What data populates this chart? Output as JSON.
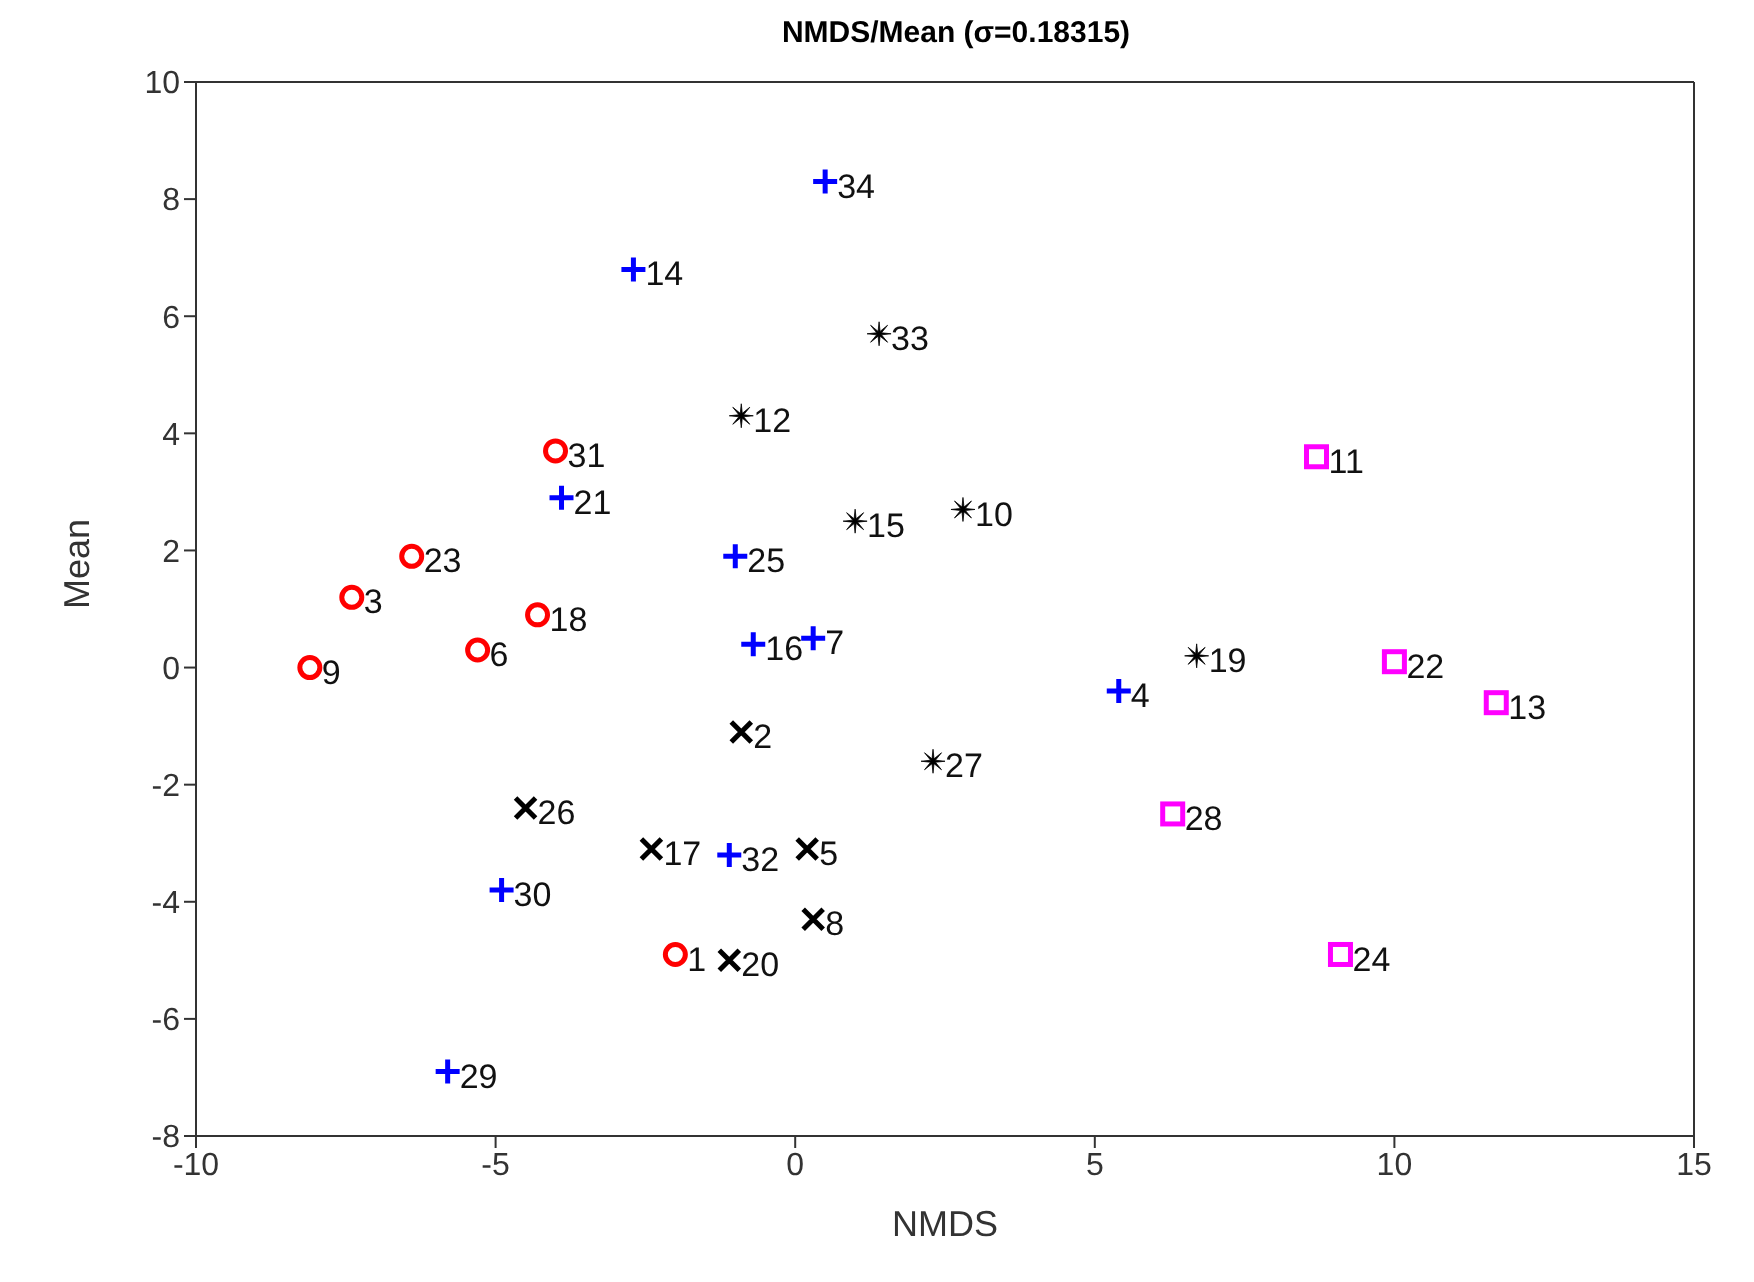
{
  "chart_data": {
    "type": "scatter",
    "title": "NMDS/Mean (σ=0.18315)",
    "xlabel": "NMDS",
    "ylabel": "Mean",
    "xlim": [
      -10,
      15
    ],
    "xticks": [
      -10,
      -5,
      0,
      5,
      10,
      15
    ],
    "ylim": [
      -8,
      10
    ],
    "yticks": [
      -8,
      -6,
      -4,
      -2,
      0,
      2,
      4,
      6,
      8,
      10
    ],
    "grid": false,
    "series": [
      {
        "color": "#ff0000",
        "marker": "circle",
        "x": [
          -4.0,
          -6.4,
          -7.4,
          -4.3,
          -5.3,
          -8.1,
          -2.0
        ],
        "values": [
          3.7,
          1.9,
          1.2,
          0.9,
          0.3,
          0.0,
          -4.9
        ]
      },
      {
        "color": "#0000ff",
        "marker": "plus",
        "x": [
          0.5,
          -2.7,
          -3.9,
          -1.0,
          -0.7,
          0.3,
          5.4,
          -1.1,
          -4.9,
          -5.8
        ],
        "values": [
          8.3,
          6.8,
          2.9,
          1.9,
          0.4,
          0.5,
          -0.4,
          -3.2,
          -3.8,
          -6.9
        ]
      },
      {
        "color": "#000000",
        "marker": "star",
        "x": [
          1.4,
          -0.9,
          1.0,
          2.8,
          6.7,
          2.3
        ],
        "values": [
          5.7,
          4.3,
          2.5,
          2.7,
          0.2,
          -1.6
        ]
      },
      {
        "color": "#000000",
        "marker": "cross",
        "x": [
          -0.9,
          -4.5,
          -2.4,
          0.2,
          0.3,
          -1.1
        ],
        "values": [
          -1.1,
          -2.4,
          -3.1,
          -3.1,
          -4.3,
          -5.0
        ]
      },
      {
        "color": "#ff00ff",
        "marker": "square",
        "x": [
          8.7,
          10.0,
          11.7,
          6.3,
          9.1
        ],
        "values": [
          3.6,
          0.1,
          -0.6,
          -2.5,
          -4.9
        ]
      }
    ],
    "annotations": [
      {
        "text": "31",
        "x": -4.0,
        "y": 3.7
      },
      {
        "text": "23",
        "x": -6.4,
        "y": 1.9
      },
      {
        "text": "3",
        "x": -7.4,
        "y": 1.2
      },
      {
        "text": "18",
        "x": -4.3,
        "y": 0.9
      },
      {
        "text": "6",
        "x": -5.3,
        "y": 0.3
      },
      {
        "text": "9",
        "x": -8.1,
        "y": 0.0
      },
      {
        "text": "1",
        "x": -2.0,
        "y": -4.9
      },
      {
        "text": "34",
        "x": 0.5,
        "y": 8.3
      },
      {
        "text": "14",
        "x": -2.7,
        "y": 6.8
      },
      {
        "text": "21",
        "x": -3.9,
        "y": 2.9
      },
      {
        "text": "25",
        "x": -1.0,
        "y": 1.9
      },
      {
        "text": "16",
        "x": -0.7,
        "y": 0.4
      },
      {
        "text": "7",
        "x": 0.3,
        "y": 0.5
      },
      {
        "text": "4",
        "x": 5.4,
        "y": -0.4
      },
      {
        "text": "32",
        "x": -1.1,
        "y": -3.2
      },
      {
        "text": "30",
        "x": -4.9,
        "y": -3.8
      },
      {
        "text": "29",
        "x": -5.8,
        "y": -6.9
      },
      {
        "text": "33",
        "x": 1.4,
        "y": 5.7
      },
      {
        "text": "12",
        "x": -0.9,
        "y": 4.3
      },
      {
        "text": "15",
        "x": 1.0,
        "y": 2.5
      },
      {
        "text": "10",
        "x": 2.8,
        "y": 2.7
      },
      {
        "text": "19",
        "x": 6.7,
        "y": 0.2
      },
      {
        "text": "27",
        "x": 2.3,
        "y": -1.6
      },
      {
        "text": "2",
        "x": -0.9,
        "y": -1.1
      },
      {
        "text": "26",
        "x": -4.5,
        "y": -2.4
      },
      {
        "text": "17",
        "x": -2.4,
        "y": -3.1
      },
      {
        "text": "5",
        "x": 0.2,
        "y": -3.1
      },
      {
        "text": "8",
        "x": 0.3,
        "y": -4.3
      },
      {
        "text": "20",
        "x": -1.1,
        "y": -5.0
      },
      {
        "text": "11",
        "x": 8.7,
        "y": 3.6
      },
      {
        "text": "22",
        "x": 10.0,
        "y": 0.1
      },
      {
        "text": "13",
        "x": 11.7,
        "y": -0.6
      },
      {
        "text": "28",
        "x": 6.3,
        "y": -2.5
      },
      {
        "text": "24",
        "x": 9.1,
        "y": -4.9
      }
    ]
  }
}
